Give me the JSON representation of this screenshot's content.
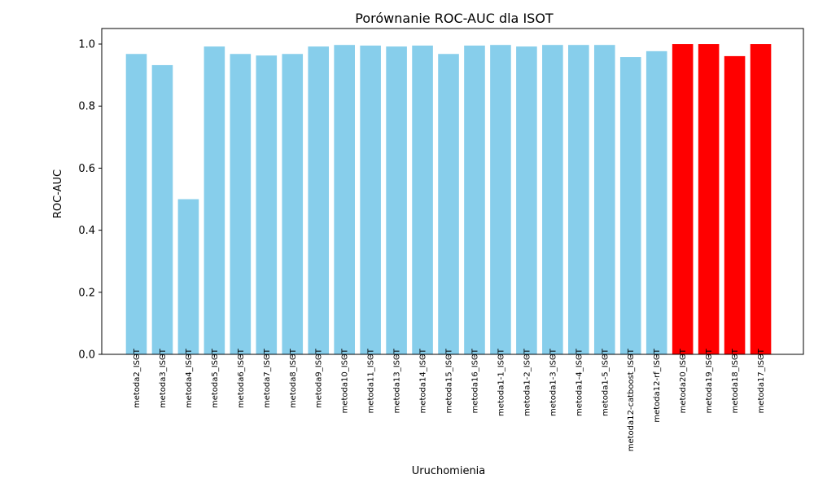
{
  "chart_data": {
    "type": "bar",
    "title": "Porównanie ROC-AUC dla ISOT",
    "xlabel": "Uruchomienia",
    "ylabel": "ROC-AUC",
    "ylim": [
      0,
      1.05
    ],
    "yticks": [
      0.0,
      0.2,
      0.4,
      0.6,
      0.8,
      1.0
    ],
    "ytick_labels": [
      "0.0",
      "0.2",
      "0.4",
      "0.6",
      "0.8",
      "1.0"
    ],
    "grid": false,
    "legend": "none",
    "categories": [
      "metoda2_ISOT",
      "metoda3_ISOT",
      "metoda4_ISOT",
      "metoda5_ISOT",
      "metoda6_ISOT",
      "metoda7_ISOT",
      "metoda8_ISOT",
      "metoda9_ISOT",
      "metoda10_ISOT",
      "metoda11_ISOT",
      "metoda13_ISOT",
      "metoda14_ISOT",
      "metoda15_ISOT",
      "metoda16_ISOT",
      "metoda1-1_ISOT",
      "metoda1-2_ISOT",
      "metoda1-3_ISOT",
      "metoda1-4_ISOT",
      "metoda1-5_ISOT",
      "metoda12-catboost_ISOT",
      "metoda12-rf_ISOT",
      "metoda20_ISOT",
      "metoda19_ISOT",
      "metoda18_ISOT",
      "metoda17_ISOT"
    ],
    "values": [
      0.968,
      0.932,
      0.5,
      0.992,
      0.968,
      0.963,
      0.968,
      0.992,
      0.997,
      0.995,
      0.992,
      0.995,
      0.968,
      0.995,
      0.997,
      0.992,
      0.997,
      0.997,
      0.997,
      0.958,
      0.977,
      1.0,
      1.0,
      0.961,
      1.0
    ],
    "colors": [
      "#87ceeb",
      "#87ceeb",
      "#87ceeb",
      "#87ceeb",
      "#87ceeb",
      "#87ceeb",
      "#87ceeb",
      "#87ceeb",
      "#87ceeb",
      "#87ceeb",
      "#87ceeb",
      "#87ceeb",
      "#87ceeb",
      "#87ceeb",
      "#87ceeb",
      "#87ceeb",
      "#87ceeb",
      "#87ceeb",
      "#87ceeb",
      "#87ceeb",
      "#87ceeb",
      "#ff0000",
      "#ff0000",
      "#ff0000",
      "#ff0000"
    ]
  }
}
